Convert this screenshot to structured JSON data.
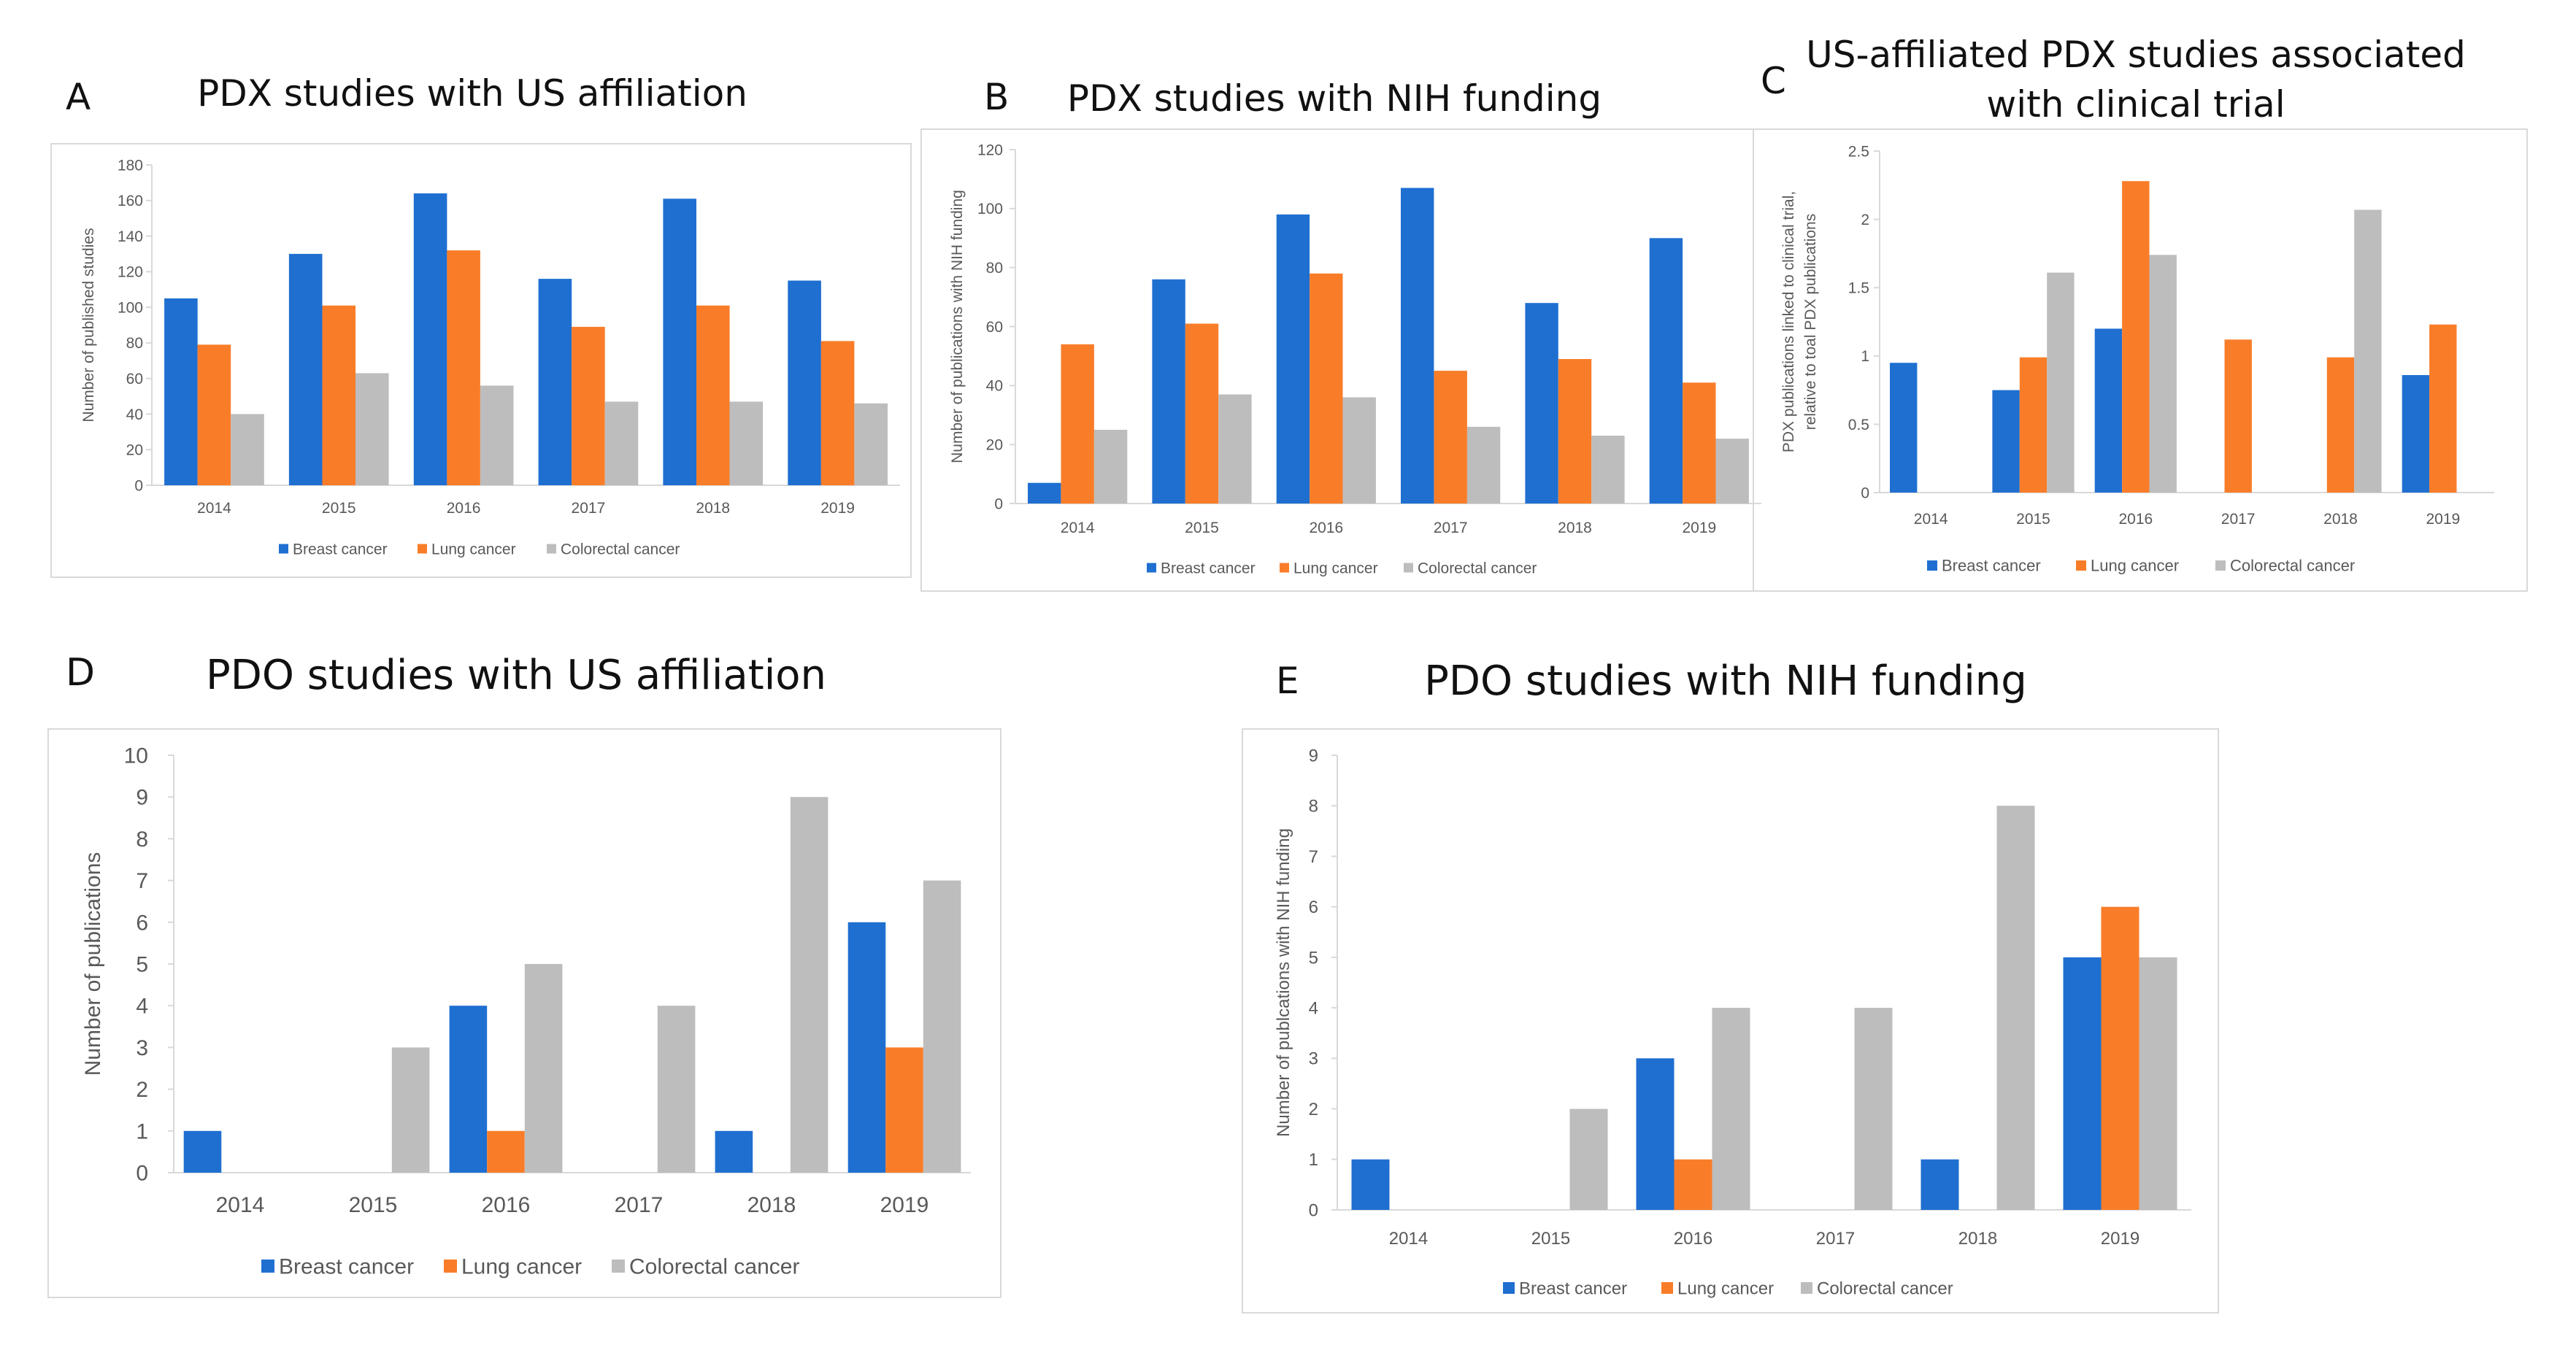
{
  "colors": {
    "breast": "#1f6fd1",
    "lung": "#f97d29",
    "colorectal": "#bdbdbd",
    "axis": "#d9d9d9",
    "text": "#595959"
  },
  "chart_data": [
    {
      "panel": "A",
      "type": "bar",
      "title": "PDX studies with US affiliation",
      "ylabel": "Number of published studies",
      "xlabel": "",
      "categories": [
        "2014",
        "2015",
        "2016",
        "2017",
        "2018",
        "2019"
      ],
      "ylim": [
        0,
        180
      ],
      "yticks": [
        "0",
        "20",
        "40",
        "60",
        "80",
        "100",
        "120",
        "140",
        "160",
        "180"
      ],
      "legend_position": "bottom",
      "series": [
        {
          "name": "Breast cancer",
          "values": [
            105,
            130,
            164,
            116,
            161,
            115
          ]
        },
        {
          "name": "Lung cancer",
          "values": [
            79,
            101,
            132,
            89,
            101,
            81
          ]
        },
        {
          "name": "Colorectal cancer",
          "values": [
            40,
            63,
            56,
            47,
            47,
            46
          ]
        }
      ]
    },
    {
      "panel": "B",
      "type": "bar",
      "title": "PDX studies with NIH funding",
      "ylabel": "Number of publications with NIH funding",
      "xlabel": "",
      "categories": [
        "2014",
        "2015",
        "2016",
        "2017",
        "2018",
        "2019"
      ],
      "ylim": [
        0,
        120
      ],
      "yticks": [
        "0",
        "20",
        "40",
        "60",
        "80",
        "100",
        "120"
      ],
      "legend_position": "bottom",
      "series": [
        {
          "name": "Breast cancer",
          "values": [
            7,
            76,
            98,
            107,
            68,
            90
          ]
        },
        {
          "name": "Lung cancer",
          "values": [
            54,
            61,
            78,
            45,
            49,
            41
          ]
        },
        {
          "name": "Colorectal cancer",
          "values": [
            25,
            37,
            36,
            26,
            23,
            22
          ]
        }
      ]
    },
    {
      "panel": "C",
      "type": "bar",
      "title_lines": [
        "US-affiliated PDX studies associated",
        "with clinical trial"
      ],
      "ylabel_lines": [
        "PDX publications linked to clinical trial,",
        "relative to toal PDX publications"
      ],
      "xlabel": "",
      "categories": [
        "2014",
        "2015",
        "2016",
        "2017",
        "2018",
        "2019"
      ],
      "ylim": [
        0,
        2.5
      ],
      "yticks": [
        "0",
        "0.5",
        "1",
        "1.5",
        "2",
        "2.5"
      ],
      "legend_position": "bottom",
      "series": [
        {
          "name": "Breast cancer",
          "values": [
            0.95,
            0.75,
            1.2,
            0,
            0,
            0.86
          ]
        },
        {
          "name": "Lung cancer",
          "values": [
            0,
            0.99,
            2.28,
            1.12,
            0.99,
            1.23
          ]
        },
        {
          "name": "Colorectal cancer",
          "values": [
            0,
            1.61,
            1.74,
            0,
            2.07,
            0
          ]
        }
      ]
    },
    {
      "panel": "D",
      "type": "bar",
      "title": "PDO studies with US affiliation",
      "ylabel": "Number of publications",
      "xlabel": "",
      "categories": [
        "2014",
        "2015",
        "2016",
        "2017",
        "2018",
        "2019"
      ],
      "ylim": [
        0,
        10
      ],
      "yticks": [
        "0",
        "1",
        "2",
        "3",
        "4",
        "5",
        "6",
        "7",
        "8",
        "9",
        "10"
      ],
      "legend_position": "bottom",
      "series": [
        {
          "name": "Breast cancer",
          "values": [
            1,
            0,
            4,
            0,
            1,
            6
          ]
        },
        {
          "name": "Lung cancer",
          "values": [
            0,
            0,
            1,
            0,
            0,
            3
          ]
        },
        {
          "name": "Colorectal cancer",
          "values": [
            0,
            3,
            5,
            4,
            9,
            7
          ]
        }
      ]
    },
    {
      "panel": "E",
      "type": "bar",
      "title": "PDO studies with NIH funding",
      "ylabel": "Number of publcations with NIH funding",
      "xlabel": "",
      "categories": [
        "2014",
        "2015",
        "2016",
        "2017",
        "2018",
        "2019"
      ],
      "ylim": [
        0,
        9
      ],
      "yticks": [
        "0",
        "1",
        "2",
        "3",
        "4",
        "5",
        "6",
        "7",
        "8",
        "9"
      ],
      "legend_position": "bottom",
      "series": [
        {
          "name": "Breast cancer",
          "values": [
            1,
            0,
            3,
            0,
            1,
            5
          ]
        },
        {
          "name": "Lung cancer",
          "values": [
            0,
            0,
            1,
            0,
            0,
            6
          ]
        },
        {
          "name": "Colorectal cancer",
          "values": [
            0,
            2,
            4,
            4,
            8,
            5
          ]
        }
      ]
    }
  ]
}
